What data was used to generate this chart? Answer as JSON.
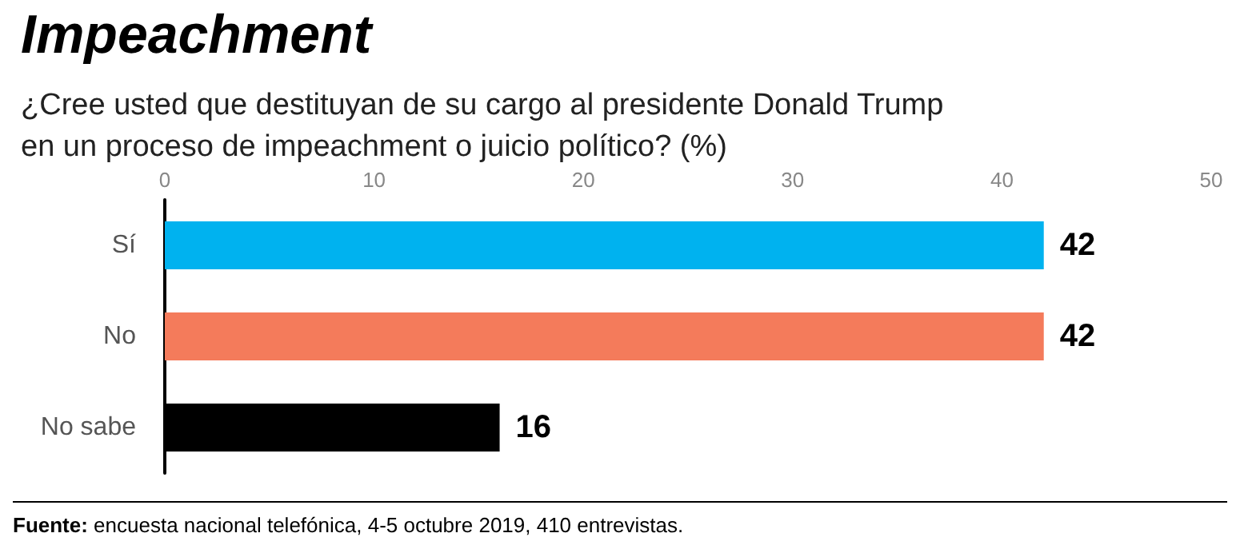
{
  "chart_data": {
    "type": "bar",
    "orientation": "horizontal",
    "title": "Impeachment",
    "subtitle": "¿Cree usted que destituyan de su cargo al presidente Donald Trump\nen un proceso de impeachment o juicio político? (%)",
    "categories": [
      "Sí",
      "No",
      "No sabe"
    ],
    "values": [
      42,
      42,
      16
    ],
    "colors": [
      "#00b2ef",
      "#f47b5b",
      "#000000"
    ],
    "xlim": [
      0,
      50
    ],
    "xticks": [
      0,
      10,
      20,
      30,
      40,
      50
    ],
    "data_labels": true,
    "grid": false,
    "annotations": [
      "Fuente: encuesta nacional telefónica, 4-5 octubre 2019, 410 entrevistas."
    ]
  }
}
